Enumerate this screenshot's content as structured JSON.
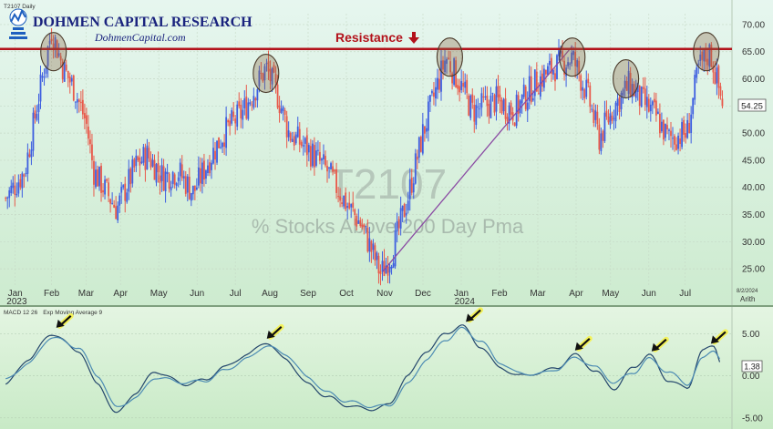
{
  "chart_data": [
    {
      "type": "candlestick",
      "panel": "price",
      "ticker_header": "T2107 Daily",
      "watermark_symbol": "T2107",
      "watermark_name": "% Stocks Above 200 Day Pma",
      "brand": "DOHMEN CAPITAL RESEARCH",
      "brand_url": "DohmenCapital.com",
      "scale_label": "Arith",
      "date_label": "8/2/2024",
      "last_value_label": "54.25",
      "resistance_label": "Resistance",
      "resistance_level": 65.5,
      "y_ticks": [
        25,
        30,
        35,
        40,
        45,
        50,
        55,
        60,
        65,
        70
      ],
      "y_tick_labels": [
        "25.00",
        "30.00",
        "35.00",
        "40.00",
        "45.00",
        "50.00",
        "55.00",
        "60.00",
        "65.00",
        "70.00"
      ],
      "ylim": [
        22,
        72
      ],
      "month_labels": [
        {
          "label": "Jan",
          "t": 0.25
        },
        {
          "label": "Feb",
          "t": 1.2
        },
        {
          "label": "Mar",
          "t": 2.1
        },
        {
          "label": "Apr",
          "t": 3.0
        },
        {
          "label": "May",
          "t": 4.0
        },
        {
          "label": "Jun",
          "t": 5.0
        },
        {
          "label": "Jul",
          "t": 6.0
        },
        {
          "label": "Aug",
          "t": 6.9
        },
        {
          "label": "Sep",
          "t": 7.9
        },
        {
          "label": "Oct",
          "t": 8.9
        },
        {
          "label": "Nov",
          "t": 9.9
        },
        {
          "label": "Dec",
          "t": 10.9
        },
        {
          "label": "Jan",
          "t": 11.9
        },
        {
          "label": "Feb",
          "t": 12.9
        },
        {
          "label": "Mar",
          "t": 13.9
        },
        {
          "label": "Apr",
          "t": 14.9
        },
        {
          "label": "May",
          "t": 15.8
        },
        {
          "label": "Jun",
          "t": 16.8
        },
        {
          "label": "Jul",
          "t": 17.75
        }
      ],
      "year_labels": [
        {
          "label": "2023",
          "t": 0.1
        },
        {
          "label": "2024",
          "t": 11.8
        }
      ],
      "xlim": [
        -0.1,
        18.9
      ],
      "path_keypoints": [
        [
          0.0,
          38
        ],
        [
          0.5,
          43
        ],
        [
          0.9,
          58
        ],
        [
          1.2,
          69
        ],
        [
          1.5,
          62
        ],
        [
          1.8,
          58
        ],
        [
          2.1,
          52
        ],
        [
          2.3,
          43
        ],
        [
          2.9,
          36
        ],
        [
          3.4,
          44
        ],
        [
          3.7,
          46
        ],
        [
          4.1,
          42
        ],
        [
          4.5,
          43
        ],
        [
          4.9,
          39
        ],
        [
          5.3,
          45
        ],
        [
          5.7,
          50
        ],
        [
          6.2,
          54
        ],
        [
          6.8,
          62
        ],
        [
          7.1,
          57
        ],
        [
          7.4,
          50
        ],
        [
          7.9,
          47
        ],
        [
          8.4,
          43
        ],
        [
          8.9,
          37
        ],
        [
          9.3,
          33
        ],
        [
          9.8,
          24
        ],
        [
          10.1,
          28
        ],
        [
          10.5,
          38
        ],
        [
          10.9,
          50
        ],
        [
          11.2,
          57
        ],
        [
          11.5,
          64
        ],
        [
          11.8,
          60
        ],
        [
          12.2,
          54
        ],
        [
          12.8,
          56
        ],
        [
          13.3,
          54
        ],
        [
          13.8,
          59
        ],
        [
          14.3,
          62
        ],
        [
          14.8,
          64
        ],
        [
          15.2,
          57
        ],
        [
          15.5,
          49
        ],
        [
          15.9,
          55
        ],
        [
          16.3,
          59
        ],
        [
          16.6,
          56
        ],
        [
          17.0,
          53
        ],
        [
          17.3,
          49
        ],
        [
          17.8,
          50
        ],
        [
          18.1,
          62
        ],
        [
          18.4,
          65
        ],
        [
          18.7,
          56
        ]
      ],
      "highlight_circles": [
        {
          "t": 1.25,
          "v": 65
        },
        {
          "t": 6.8,
          "v": 61
        },
        {
          "t": 11.6,
          "v": 64
        },
        {
          "t": 14.8,
          "v": 64
        },
        {
          "t": 16.2,
          "v": 60
        },
        {
          "t": 18.3,
          "v": 65
        }
      ],
      "trendline": {
        "from": {
          "t": 9.85,
          "v": 24.5
        },
        "to": {
          "t": 14.8,
          "v": 66
        }
      }
    },
    {
      "type": "line",
      "panel": "macd",
      "header": "MACD 12 26",
      "header2": "Exp Moving Average 9",
      "last_value_label": "1.38",
      "y_ticks": [
        -5,
        0,
        5
      ],
      "y_tick_labels": [
        "-5.00",
        "0.00",
        "5.00"
      ],
      "ylim": [
        -6,
        7
      ],
      "series": [
        {
          "name": "MACD 12 26",
          "color": "#24466c",
          "keypoints": [
            [
              0,
              -1
            ],
            [
              0.6,
              2
            ],
            [
              1.2,
              5
            ],
            [
              1.9,
              3
            ],
            [
              2.4,
              -1
            ],
            [
              2.9,
              -4.5
            ],
            [
              3.4,
              -2
            ],
            [
              3.9,
              0.5
            ],
            [
              4.7,
              -1
            ],
            [
              5.2,
              -0.5
            ],
            [
              5.7,
              1
            ],
            [
              6.3,
              2.5
            ],
            [
              6.8,
              4
            ],
            [
              7.3,
              2
            ],
            [
              7.9,
              -1
            ],
            [
              8.4,
              -2.5
            ],
            [
              8.9,
              -3.5
            ],
            [
              9.5,
              -4
            ],
            [
              10.0,
              -3.5
            ],
            [
              10.5,
              0
            ],
            [
              11.0,
              3
            ],
            [
              11.5,
              5
            ],
            [
              11.9,
              6
            ],
            [
              12.4,
              3.5
            ],
            [
              12.9,
              1
            ],
            [
              13.4,
              0
            ],
            [
              13.9,
              0.3
            ],
            [
              14.4,
              1
            ],
            [
              14.9,
              2.5
            ],
            [
              15.4,
              0.5
            ],
            [
              15.9,
              -1.5
            ],
            [
              16.4,
              1
            ],
            [
              16.8,
              2.5
            ],
            [
              17.3,
              -0.5
            ],
            [
              17.8,
              -1.5
            ],
            [
              18.2,
              3
            ],
            [
              18.5,
              3.5
            ],
            [
              18.7,
              1.5
            ]
          ]
        },
        {
          "name": "Exp Moving Average 9",
          "color": "#4c8bb3",
          "keypoints": [
            [
              0,
              -0.5
            ],
            [
              0.6,
              1.5
            ],
            [
              1.2,
              4.6
            ],
            [
              1.9,
              3.4
            ],
            [
              2.4,
              0
            ],
            [
              2.9,
              -3.8
            ],
            [
              3.4,
              -2.6
            ],
            [
              3.9,
              -0.2
            ],
            [
              4.7,
              -0.8
            ],
            [
              5.2,
              -0.6
            ],
            [
              5.7,
              0.6
            ],
            [
              6.3,
              2
            ],
            [
              6.8,
              3.6
            ],
            [
              7.3,
              2.6
            ],
            [
              7.9,
              -0.2
            ],
            [
              8.4,
              -2
            ],
            [
              8.9,
              -3
            ],
            [
              9.5,
              -3.6
            ],
            [
              10.0,
              -3.6
            ],
            [
              10.5,
              -1
            ],
            [
              11.0,
              2
            ],
            [
              11.5,
              4.3
            ],
            [
              11.9,
              5.6
            ],
            [
              12.4,
              4.2
            ],
            [
              12.9,
              1.6
            ],
            [
              13.4,
              0.3
            ],
            [
              13.9,
              0.2
            ],
            [
              14.4,
              0.8
            ],
            [
              14.9,
              2.2
            ],
            [
              15.4,
              1
            ],
            [
              15.9,
              -0.8
            ],
            [
              16.4,
              0.4
            ],
            [
              16.8,
              2
            ],
            [
              17.3,
              0.5
            ],
            [
              17.8,
              -1
            ],
            [
              18.2,
              2
            ],
            [
              18.5,
              3.1
            ],
            [
              18.7,
              2
            ]
          ]
        }
      ],
      "arrows": [
        {
          "t": 1.25,
          "v": 5.5
        },
        {
          "t": 6.75,
          "v": 4.2
        },
        {
          "t": 11.95,
          "v": 6.2
        },
        {
          "t": 14.8,
          "v": 2.8
        },
        {
          "t": 16.8,
          "v": 2.7
        },
        {
          "t": 18.35,
          "v": 3.6
        }
      ]
    }
  ]
}
